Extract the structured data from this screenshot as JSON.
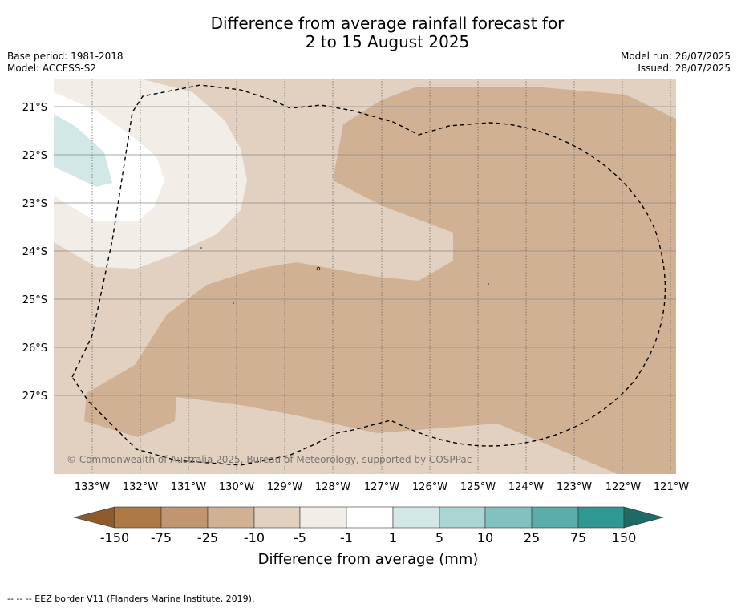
{
  "title": {
    "line1": "Difference from average rainfall forecast for",
    "line2": "2 to 15 August 2025"
  },
  "meta": {
    "base_period": "Base period: 1981-2018",
    "model": "Model: ACCESS-S2",
    "model_run": "Model run: 26/07/2025",
    "issued": "Issued: 28/07/2025"
  },
  "map": {
    "latitude_labels": [
      "21°S",
      "22°S",
      "23°S",
      "24°S",
      "25°S",
      "26°S",
      "27°S"
    ],
    "longitude_labels": [
      "133°W",
      "132°W",
      "131°W",
      "130°W",
      "129°W",
      "128°W",
      "127°W",
      "126°W",
      "125°W",
      "124°W",
      "123°W",
      "122°W",
      "121°W"
    ],
    "copyright": "© Commonwealth of Australia 2025, Bureau of Meteorology, supported by COSPPac",
    "colors": {
      "below_150": "#8c5a2b",
      "m150_m75": "#ad7a45",
      "m75_m25": "#c09570",
      "m25_m10": "#d1b194",
      "m10_m5": "#e2d1c1",
      "m5_m1": "#f3ede8",
      "m1_1": "#ffffff",
      "1_5": "#d2e8e7",
      "5_10": "#a9d5d3",
      "10_25": "#81c2bf",
      "25_75": "#5badaa",
      "75_150": "#309892",
      "above_150": "#1e6a65"
    }
  },
  "colorbar": {
    "tick_labels": [
      "-150",
      "-75",
      "-25",
      "-10",
      "-5",
      "-1",
      "1",
      "5",
      "10",
      "25",
      "75",
      "150"
    ],
    "title": "Difference from average (mm)"
  },
  "footnote": "--  --  -- EEZ border V11 (Flanders Marine Institute, 2019)."
}
